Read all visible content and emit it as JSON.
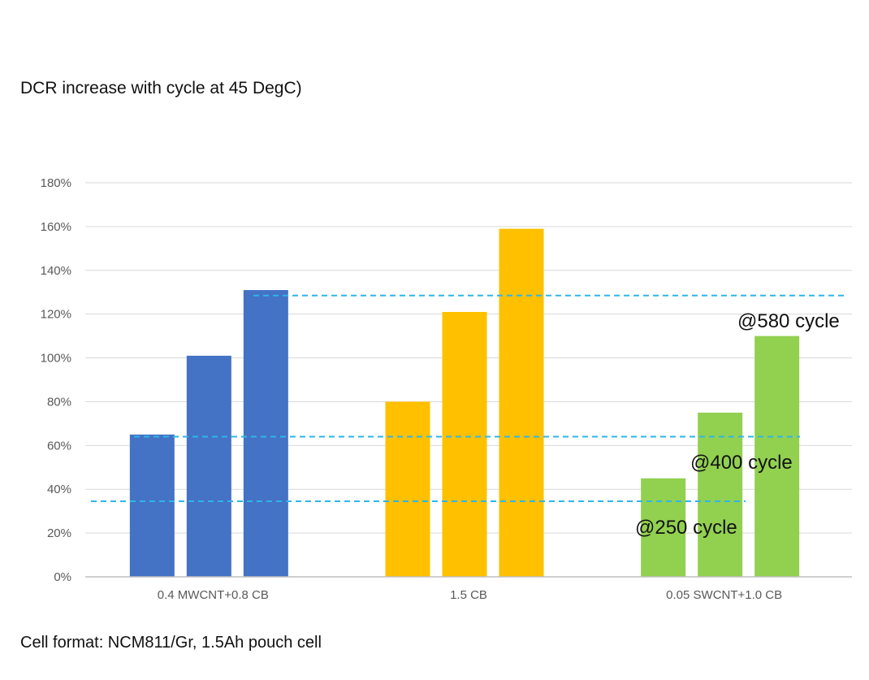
{
  "title": "DCR increase with cycle at 45 DegC)",
  "footer": "Cell format: NCM811/Gr, 1.5Ah pouch cell",
  "chart_data": {
    "type": "bar",
    "title": "DCR increase with cycle at 45 DegC)",
    "xlabel": "",
    "ylabel": "",
    "ylim": [
      0,
      180
    ],
    "yticks": [
      "0%",
      "20%",
      "40%",
      "60%",
      "80%",
      "100%",
      "120%",
      "140%",
      "160%",
      "180%"
    ],
    "categories": [
      "0.4 MWCNT+0.8 CB",
      "1.5 CB",
      "0.05 SWCNT+1.0 CB"
    ],
    "series": [
      {
        "name": "@250 cycle",
        "values": [
          65,
          80,
          45
        ]
      },
      {
        "name": "@400 cycle",
        "values": [
          101,
          121,
          75
        ]
      },
      {
        "name": "@580 cycle",
        "values": [
          131,
          159,
          110
        ]
      }
    ],
    "group_colors": [
      "#4472C4",
      "#FFC000",
      "#92D050"
    ],
    "reference_lines": [
      34.5,
      64,
      128.5
    ],
    "reference_color": "#2EB6E8",
    "annotations": [
      "@250 cycle",
      "@400 cycle",
      "@580 cycle"
    ],
    "grid": true,
    "legend": "none"
  }
}
